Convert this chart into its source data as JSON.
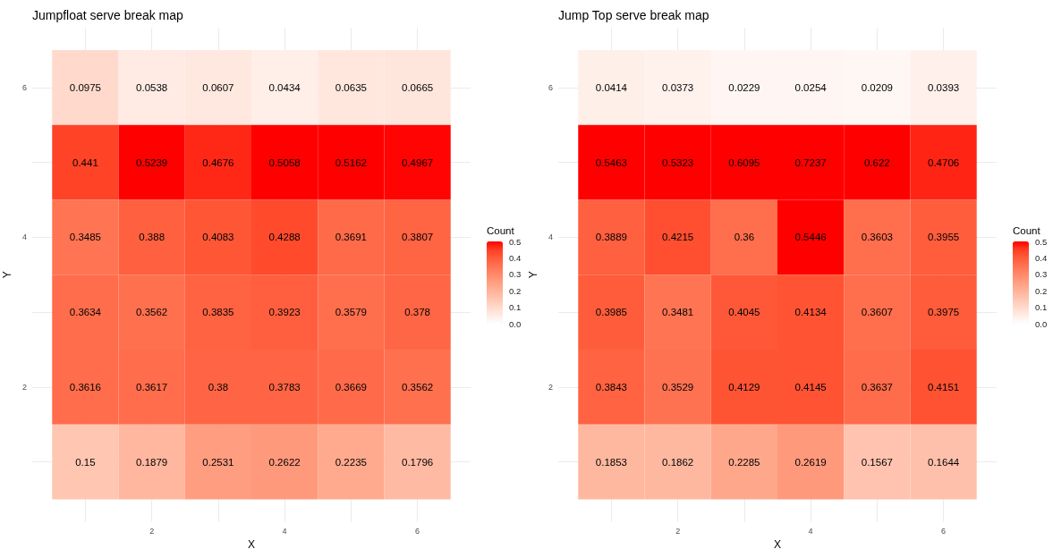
{
  "chart_data": [
    {
      "type": "heatmap",
      "title": "Jumpfloat serve break map",
      "xlabel": "X",
      "ylabel": "Y",
      "clabel": "Count",
      "categories": [
        null,
        "2",
        null,
        "4",
        null,
        "6"
      ],
      "y_categories": [
        "6",
        null,
        "4",
        null,
        "2",
        null
      ],
      "cells": [
        [
          0.0975,
          0.0538,
          0.0607,
          0.0434,
          0.0635,
          0.0665
        ],
        [
          0.441,
          0.5239,
          0.4676,
          0.5058,
          0.5162,
          0.4967
        ],
        [
          0.3485,
          0.388,
          0.4083,
          0.4288,
          0.3691,
          0.3807
        ],
        [
          0.3634,
          0.3562,
          0.3835,
          0.3923,
          0.3579,
          0.378
        ],
        [
          0.3616,
          0.3617,
          0.38,
          0.3783,
          0.3669,
          0.3562
        ],
        [
          0.15,
          0.1879,
          0.2531,
          0.2622,
          0.2235,
          0.1796
        ]
      ],
      "clim": [
        0,
        0.5
      ],
      "cticks": [
        {
          "value": 0,
          "label": "0.0"
        },
        0.1,
        0.2,
        0.3,
        0.4,
        0.5
      ],
      "grid": true,
      "data_labels": true
    },
    {
      "type": "heatmap",
      "title": "Jump Top serve break map",
      "xlabel": "X",
      "ylabel": "Y",
      "clabel": "Count",
      "categories": [
        null,
        "2",
        null,
        "4",
        null,
        "6"
      ],
      "y_categories": [
        "6",
        null,
        "4",
        null,
        "2",
        null
      ],
      "cells": [
        [
          0.0414,
          0.0373,
          0.0229,
          0.0254,
          0.0209,
          0.0393
        ],
        [
          0.5463,
          0.5323,
          0.6095,
          0.7237,
          0.622,
          0.4706
        ],
        [
          0.3889,
          0.4215,
          0.36,
          0.5446,
          0.3603,
          0.3955
        ],
        [
          0.3985,
          0.3481,
          0.4045,
          0.4134,
          0.3607,
          0.3975
        ],
        [
          0.3843,
          0.3529,
          0.4129,
          0.4145,
          0.3637,
          0.4151
        ],
        [
          0.1853,
          0.1862,
          0.2285,
          0.2619,
          0.1567,
          0.1644
        ]
      ],
      "clim": [
        0,
        0.5
      ],
      "cticks": [
        {
          "value": 0,
          "label": "0.0"
        },
        0.1,
        0.2,
        0.3,
        0.4,
        0.5
      ],
      "grid": true,
      "data_labels": true
    }
  ]
}
